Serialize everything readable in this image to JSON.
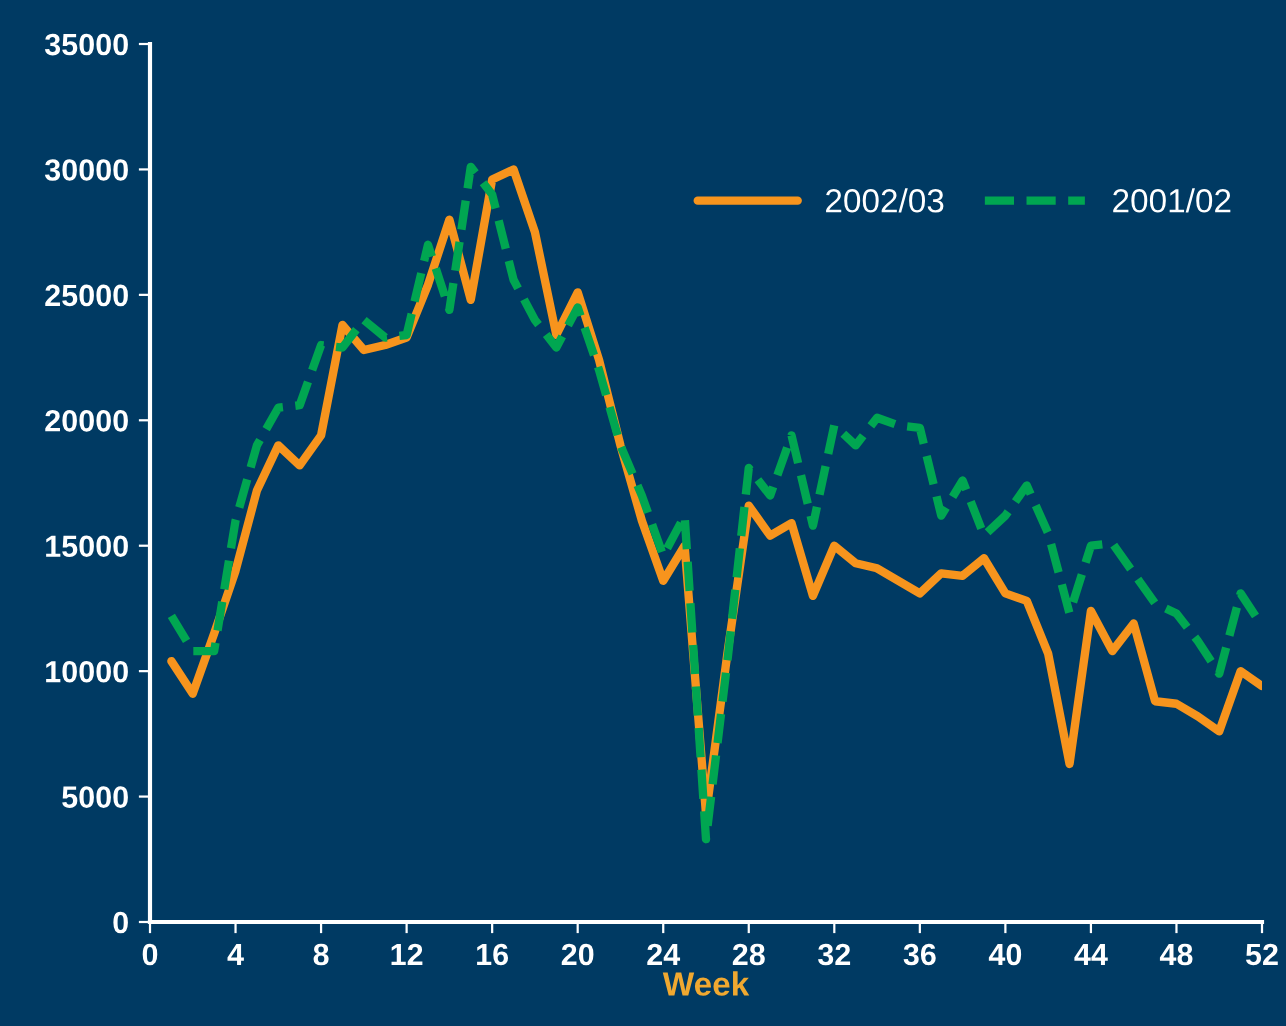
{
  "chart_data": {
    "type": "line",
    "xlabel": "Week",
    "x": [
      1,
      2,
      3,
      4,
      5,
      6,
      7,
      8,
      9,
      10,
      11,
      12,
      13,
      14,
      15,
      16,
      17,
      18,
      19,
      20,
      21,
      22,
      23,
      24,
      25,
      26,
      27,
      28,
      29,
      30,
      31,
      32,
      33,
      34,
      35,
      36,
      37,
      38,
      39,
      40,
      41,
      42,
      43,
      44,
      45,
      46,
      47,
      48,
      49,
      50,
      51,
      52
    ],
    "series": [
      {
        "name": "2002/03",
        "color": "#f7941d",
        "line_style": "solid",
        "values": [
          10400,
          9100,
          11500,
          14000,
          17200,
          19000,
          18200,
          19400,
          23800,
          22800,
          23000,
          23300,
          25400,
          28000,
          24800,
          29600,
          30000,
          27500,
          23400,
          25100,
          22400,
          19000,
          16000,
          13600,
          15000,
          4300,
          10700,
          16600,
          15400,
          15900,
          13000,
          15000,
          14300,
          14100,
          13600,
          13100,
          13900,
          13800,
          14500,
          13100,
          12800,
          10700,
          6300,
          12400,
          10800,
          11900,
          8800,
          8700,
          8200,
          7600,
          10000,
          9400
        ]
      },
      {
        "name": "2001/02",
        "color": "#00a651",
        "line_style": "dashed",
        "values": [
          12200,
          10800,
          10800,
          16000,
          19000,
          20500,
          20600,
          23000,
          22900,
          24000,
          23300,
          23400,
          27000,
          24400,
          30100,
          29000,
          25600,
          24000,
          22900,
          24500,
          22000,
          19000,
          17000,
          14600,
          16200,
          3300,
          10400,
          18100,
          17000,
          19400,
          15800,
          19800,
          19000,
          20100,
          19800,
          19700,
          16200,
          17600,
          15400,
          16200,
          17400,
          15500,
          12300,
          15000,
          15100,
          13900,
          12700,
          12300,
          11200,
          9900,
          13100,
          11800
        ]
      }
    ],
    "xlim": [
      0,
      52
    ],
    "xticks": [
      0,
      4,
      8,
      12,
      16,
      20,
      24,
      28,
      32,
      36,
      40,
      44,
      48,
      52
    ],
    "ylim": [
      0,
      35000
    ],
    "yticks": [
      0,
      5000,
      10000,
      15000,
      20000,
      25000,
      30000,
      35000
    ],
    "legend": "top right",
    "grid": false
  }
}
